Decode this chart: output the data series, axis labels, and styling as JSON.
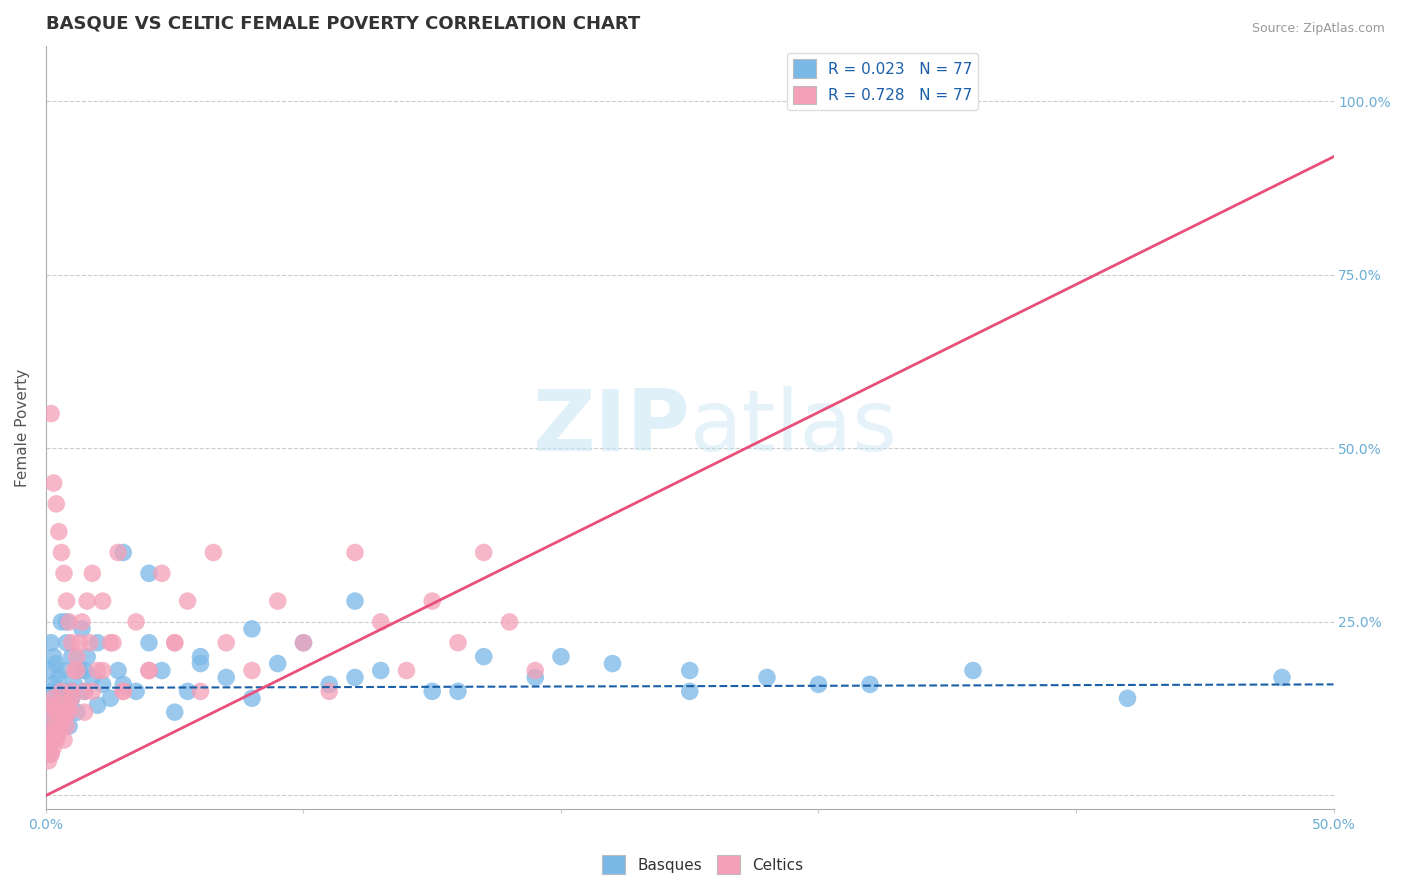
{
  "title": "BASQUE VS CELTIC FEMALE POVERTY CORRELATION CHART",
  "source": "Source: ZipAtlas.com",
  "ylabel": "Female Poverty",
  "basque_color": "#7ab8e8",
  "celtic_color": "#f4a0b8",
  "basque_line_color": "#1a5fa8",
  "celtic_line_color": "#e8507a",
  "watermark_color": "#d0eaf8",
  "grid_color": "#cccccc",
  "title_color": "#333333",
  "axis_label_color": "#6baed6",
  "legend_r_color": "#1a5fa8",
  "legend_n_color": "#333333",
  "xlim": [
    0.0,
    0.5
  ],
  "ylim": [
    -0.02,
    1.08
  ],
  "yticks": [
    0.0,
    0.25,
    0.5,
    0.75,
    1.0
  ],
  "ytick_labels": [
    "",
    "25.0%",
    "50.0%",
    "75.0%",
    "100.0%"
  ],
  "xticks": [
    0.0,
    0.1,
    0.2,
    0.3,
    0.4,
    0.5
  ],
  "xtick_labels": [
    "0.0%",
    "",
    "",
    "",
    "",
    "50.0%"
  ],
  "basque_line_x": [
    0.0,
    0.5
  ],
  "basque_line_y": [
    0.155,
    0.16
  ],
  "celtic_line_x": [
    0.0,
    0.5
  ],
  "celtic_line_y": [
    0.0,
    0.92
  ],
  "basque_x": [
    0.001,
    0.001,
    0.002,
    0.002,
    0.002,
    0.003,
    0.003,
    0.003,
    0.004,
    0.004,
    0.004,
    0.005,
    0.005,
    0.006,
    0.006,
    0.007,
    0.007,
    0.008,
    0.008,
    0.009,
    0.01,
    0.01,
    0.011,
    0.012,
    0.013,
    0.014,
    0.015,
    0.016,
    0.018,
    0.02,
    0.022,
    0.025,
    0.028,
    0.03,
    0.035,
    0.04,
    0.045,
    0.05,
    0.055,
    0.06,
    0.07,
    0.08,
    0.09,
    0.1,
    0.11,
    0.12,
    0.13,
    0.15,
    0.17,
    0.19,
    0.22,
    0.25,
    0.28,
    0.32,
    0.36,
    0.42,
    0.48,
    0.001,
    0.002,
    0.003,
    0.005,
    0.008,
    0.01,
    0.015,
    0.02,
    0.03,
    0.04,
    0.06,
    0.08,
    0.12,
    0.16,
    0.2,
    0.25,
    0.3
  ],
  "basque_y": [
    0.12,
    0.18,
    0.08,
    0.15,
    0.22,
    0.1,
    0.16,
    0.2,
    0.09,
    0.13,
    0.19,
    0.11,
    0.17,
    0.14,
    0.25,
    0.12,
    0.18,
    0.15,
    0.22,
    0.1,
    0.14,
    0.2,
    0.16,
    0.12,
    0.18,
    0.24,
    0.15,
    0.2,
    0.17,
    0.22,
    0.16,
    0.14,
    0.18,
    0.35,
    0.15,
    0.32,
    0.18,
    0.12,
    0.15,
    0.2,
    0.17,
    0.14,
    0.19,
    0.22,
    0.16,
    0.28,
    0.18,
    0.15,
    0.2,
    0.17,
    0.19,
    0.15,
    0.17,
    0.16,
    0.18,
    0.14,
    0.17,
    0.06,
    0.08,
    0.1,
    0.12,
    0.25,
    0.15,
    0.18,
    0.13,
    0.16,
    0.22,
    0.19,
    0.24,
    0.17,
    0.15,
    0.2,
    0.18,
    0.16
  ],
  "celtic_x": [
    0.001,
    0.001,
    0.001,
    0.002,
    0.002,
    0.002,
    0.002,
    0.003,
    0.003,
    0.003,
    0.003,
    0.004,
    0.004,
    0.004,
    0.005,
    0.005,
    0.005,
    0.006,
    0.006,
    0.007,
    0.007,
    0.008,
    0.008,
    0.009,
    0.009,
    0.01,
    0.01,
    0.011,
    0.012,
    0.013,
    0.014,
    0.015,
    0.016,
    0.017,
    0.018,
    0.02,
    0.022,
    0.025,
    0.028,
    0.03,
    0.035,
    0.04,
    0.045,
    0.05,
    0.055,
    0.06,
    0.065,
    0.07,
    0.08,
    0.09,
    0.1,
    0.11,
    0.12,
    0.13,
    0.14,
    0.15,
    0.16,
    0.17,
    0.18,
    0.19,
    0.002,
    0.003,
    0.004,
    0.005,
    0.006,
    0.007,
    0.008,
    0.009,
    0.01,
    0.012,
    0.015,
    0.018,
    0.022,
    0.026,
    0.03,
    0.04,
    0.05
  ],
  "celtic_y": [
    0.05,
    0.08,
    0.12,
    0.06,
    0.09,
    0.13,
    0.55,
    0.07,
    0.1,
    0.14,
    0.45,
    0.08,
    0.12,
    0.42,
    0.09,
    0.13,
    0.38,
    0.1,
    0.35,
    0.11,
    0.32,
    0.12,
    0.28,
    0.13,
    0.25,
    0.14,
    0.22,
    0.18,
    0.2,
    0.22,
    0.25,
    0.15,
    0.28,
    0.22,
    0.32,
    0.18,
    0.28,
    0.22,
    0.35,
    0.15,
    0.25,
    0.18,
    0.32,
    0.22,
    0.28,
    0.15,
    0.35,
    0.22,
    0.18,
    0.28,
    0.22,
    0.15,
    0.35,
    0.25,
    0.18,
    0.28,
    0.22,
    0.35,
    0.25,
    0.18,
    0.06,
    0.08,
    0.1,
    0.12,
    0.15,
    0.08,
    0.1,
    0.12,
    0.15,
    0.18,
    0.12,
    0.15,
    0.18,
    0.22,
    0.15,
    0.18,
    0.22
  ]
}
